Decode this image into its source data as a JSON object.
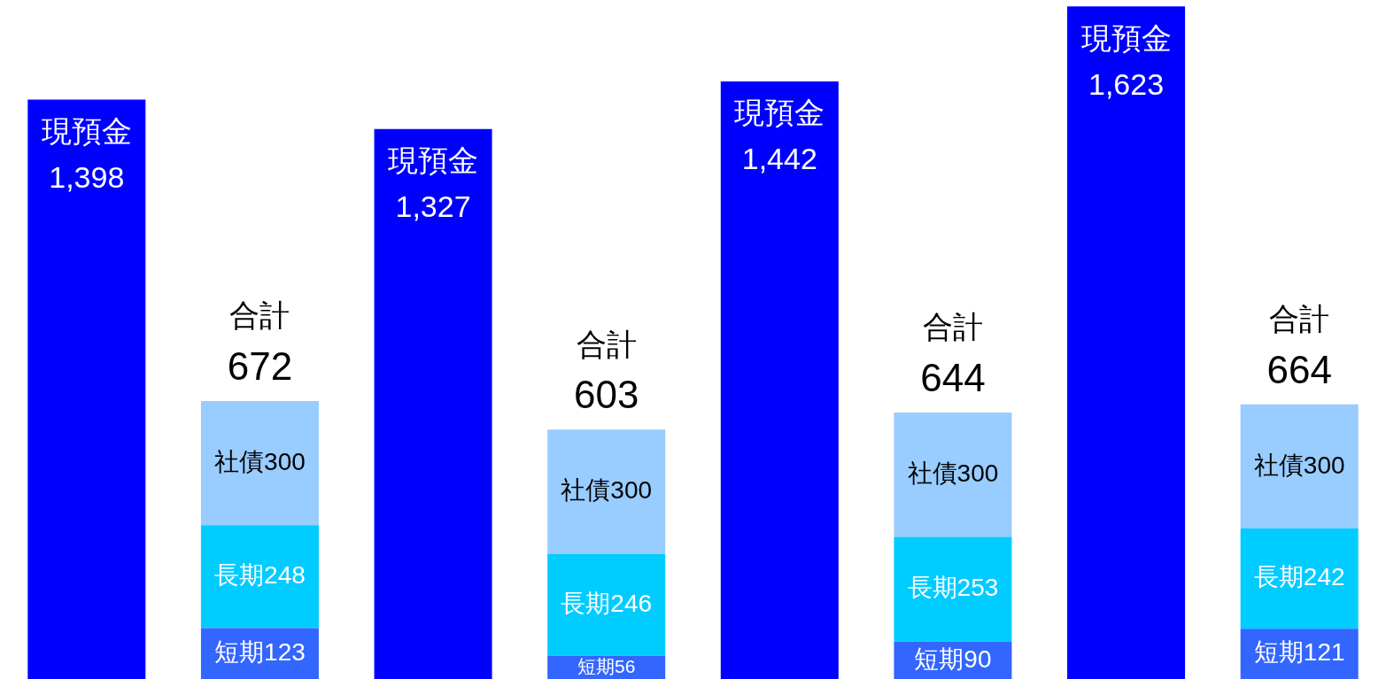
{
  "chart_data": {
    "type": "bar",
    "categories": [
      null,
      null,
      null,
      null,
      null,
      null,
      null,
      null
    ],
    "stacked": true,
    "ylim": [
      0,
      1630
    ],
    "tick_labels": false,
    "legend": false,
    "series": [
      {
        "name": "現預金",
        "color": "#0000ff",
        "values": [
          1398,
          null,
          1327,
          null,
          1442,
          null,
          1623,
          null
        ],
        "value_labels": [
          "1,398",
          null,
          "1,327",
          null,
          "1,442",
          null,
          "1,623",
          null
        ]
      },
      {
        "name": "短期",
        "color": "#3366ff",
        "values": [
          null,
          123,
          null,
          56,
          null,
          90,
          null,
          121
        ],
        "value_labels": [
          null,
          "123",
          null,
          "56",
          null,
          "90",
          null,
          "121"
        ]
      },
      {
        "name": "長期",
        "color": "#00ccff",
        "values": [
          null,
          248,
          null,
          246,
          null,
          253,
          null,
          242
        ],
        "value_labels": [
          null,
          "248",
          null,
          "246",
          null,
          "253",
          null,
          "242"
        ]
      },
      {
        "name": "社債",
        "color": "#99ccff",
        "values": [
          null,
          300,
          null,
          300,
          null,
          300,
          null,
          300
        ],
        "value_labels": [
          null,
          "300",
          null,
          "300",
          null,
          "300",
          null,
          "300"
        ]
      }
    ],
    "totals": [
      null,
      "合計\n672",
      null,
      "合計\n603",
      null,
      "合計\n644",
      null,
      "合計\n664"
    ]
  }
}
